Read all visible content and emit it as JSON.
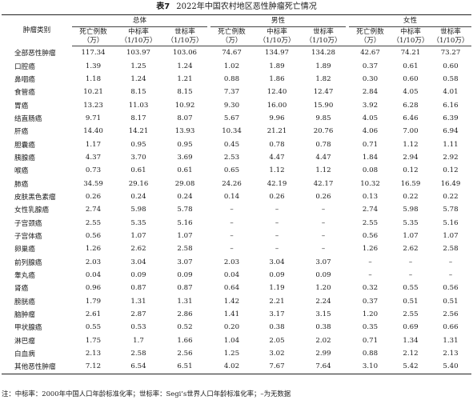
{
  "title": {
    "number": "表7",
    "text": "2022年中国农村地区恶性肿瘤死亡情况"
  },
  "header": {
    "category": "肿瘤类别",
    "groups": [
      "总体",
      "男性",
      "女性"
    ],
    "columns": [
      "死亡例数（万）",
      "中标率（1/10万）",
      "世标率（1/10万）"
    ],
    "columns_line1": [
      "死亡例数",
      "中标率",
      "世标率"
    ],
    "columns_line2": [
      "（万）",
      "（1/10万）",
      "（1/10万）"
    ]
  },
  "rows": [
    [
      "全部恶性肿瘤",
      "117.34",
      "103.97",
      "103.06",
      "74.67",
      "134.97",
      "134.28",
      "42.67",
      "74.21",
      "73.27"
    ],
    [
      "口腔癌",
      "1.39",
      "1.25",
      "1.24",
      "1.02",
      "1.89",
      "1.89",
      "0.37",
      "0.61",
      "0.60"
    ],
    [
      "鼻咽癌",
      "1.18",
      "1.24",
      "1.21",
      "0.88",
      "1.86",
      "1.82",
      "0.30",
      "0.60",
      "0.58"
    ],
    [
      "食管癌",
      "10.21",
      "8.15",
      "8.15",
      "7.37",
      "12.40",
      "12.47",
      "2.84",
      "4.05",
      "4.01"
    ],
    [
      "胃癌",
      "13.23",
      "11.03",
      "10.92",
      "9.30",
      "16.00",
      "15.90",
      "3.92",
      "6.28",
      "6.16"
    ],
    [
      "结直肠癌",
      "9.71",
      "8.17",
      "8.07",
      "5.67",
      "9.96",
      "9.85",
      "4.05",
      "6.46",
      "6.39"
    ],
    [
      "肝癌",
      "14.40",
      "14.21",
      "13.93",
      "10.34",
      "21.21",
      "20.76",
      "4.06",
      "7.00",
      "6.94"
    ],
    [
      "胆囊癌",
      "1.17",
      "0.95",
      "0.95",
      "0.45",
      "0.78",
      "0.78",
      "0.71",
      "1.12",
      "1.11"
    ],
    [
      "胰腺癌",
      "4.37",
      "3.70",
      "3.69",
      "2.53",
      "4.47",
      "4.47",
      "1.84",
      "2.94",
      "2.92"
    ],
    [
      "喉癌",
      "0.73",
      "0.61",
      "0.61",
      "0.65",
      "1.12",
      "1.12",
      "0.08",
      "0.12",
      "0.12"
    ],
    [
      "肺癌",
      "34.59",
      "29.16",
      "29.08",
      "24.26",
      "42.19",
      "42.17",
      "10.32",
      "16.59",
      "16.49"
    ],
    [
      "皮肤黑色素瘤",
      "0.26",
      "0.24",
      "0.24",
      "0.14",
      "0.26",
      "0.26",
      "0.13",
      "0.22",
      "0.22"
    ],
    [
      "女性乳腺癌",
      "2.74",
      "5.98",
      "5.78",
      "–",
      "–",
      "–",
      "2.74",
      "5.98",
      "5.78"
    ],
    [
      "子宫颈癌",
      "2.55",
      "5.35",
      "5.16",
      "–",
      "–",
      "–",
      "2.55",
      "5.35",
      "5.16"
    ],
    [
      "子宫体癌",
      "0.56",
      "1.07",
      "1.07",
      "–",
      "–",
      "–",
      "0.56",
      "1.07",
      "1.07"
    ],
    [
      "卵巢癌",
      "1.26",
      "2.62",
      "2.58",
      "–",
      "–",
      "–",
      "1.26",
      "2.62",
      "2.58"
    ],
    [
      "前列腺癌",
      "2.03",
      "3.04",
      "3.07",
      "2.03",
      "3.04",
      "3.07",
      "–",
      "–",
      "–"
    ],
    [
      "睾丸癌",
      "0.04",
      "0.09",
      "0.09",
      "0.04",
      "0.09",
      "0.09",
      "–",
      "–",
      "–"
    ],
    [
      "肾癌",
      "0.96",
      "0.87",
      "0.87",
      "0.64",
      "1.19",
      "1.20",
      "0.32",
      "0.55",
      "0.56"
    ],
    [
      "膀胱癌",
      "1.79",
      "1.31",
      "1.31",
      "1.42",
      "2.21",
      "2.24",
      "0.37",
      "0.51",
      "0.51"
    ],
    [
      "脑肿瘤",
      "2.61",
      "2.87",
      "2.86",
      "1.41",
      "3.17",
      "3.15",
      "1.20",
      "2.55",
      "2.56"
    ],
    [
      "甲状腺癌",
      "0.55",
      "0.53",
      "0.52",
      "0.20",
      "0.38",
      "0.38",
      "0.35",
      "0.69",
      "0.66"
    ],
    [
      "淋巴瘤",
      "1.75",
      "1.7",
      "1.66",
      "1.04",
      "2.05",
      "2.02",
      "0.71",
      "1.34",
      "1.31"
    ],
    [
      "白血病",
      "2.13",
      "2.58",
      "2.56",
      "1.25",
      "3.02",
      "2.99",
      "0.88",
      "2.12",
      "2.13"
    ],
    [
      "其他恶性肿瘤",
      "7.12",
      "6.54",
      "6.51",
      "4.02",
      "7.67",
      "7.64",
      "3.10",
      "5.42",
      "5.40"
    ]
  ],
  "note": "注：中标率：2000年中国人口年龄标准化率；世标率：Segi’s世界人口年龄标准化率；–为无数据"
}
